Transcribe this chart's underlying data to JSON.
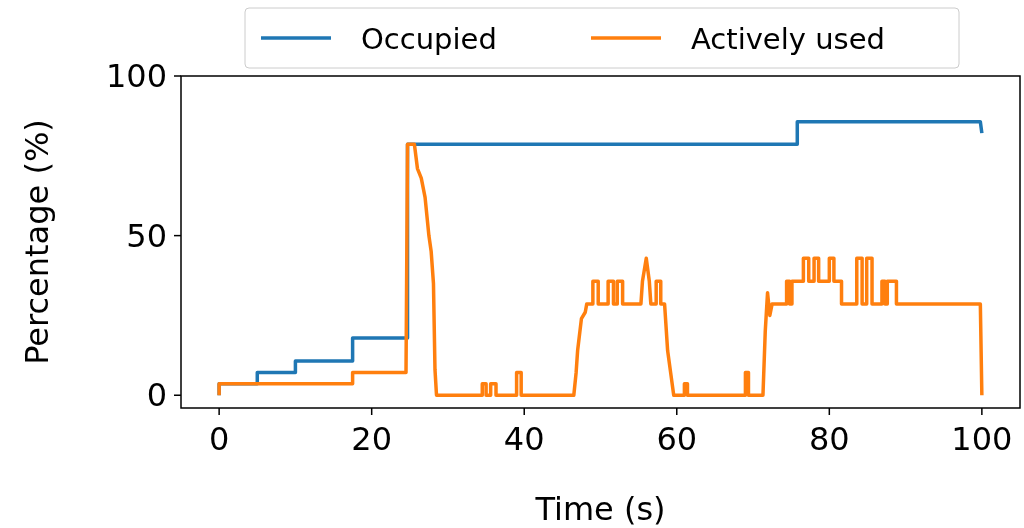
{
  "chart_data": {
    "type": "line",
    "xlabel": "Time (s)",
    "ylabel": "Percentage (%)",
    "xlim": [
      -5,
      105
    ],
    "ylim": [
      -4,
      100
    ],
    "xticks": [
      0,
      20,
      40,
      60,
      80,
      100
    ],
    "yticks": [
      0,
      50,
      100
    ],
    "legend": "top",
    "grid": false,
    "line_style": "solid",
    "marker": "none",
    "series": [
      {
        "name": "Occupied",
        "color": "#1f77b4",
        "x": [
          0,
          0,
          5,
          5,
          10,
          10,
          17.5,
          17.5,
          24.7,
          24.7,
          75.8,
          75.8,
          99.8,
          100
        ],
        "values": [
          0,
          3.6,
          3.6,
          7.1,
          7.1,
          10.7,
          10.7,
          17.9,
          17.9,
          78.6,
          78.6,
          85.7,
          85.7,
          82.1
        ]
      },
      {
        "name": "Actively used",
        "color": "#ff7f0e",
        "x": [
          0,
          0,
          17.5,
          17.5,
          24.5,
          24.7,
          25.6,
          26,
          26.5,
          27,
          27.5,
          27.8,
          28.1,
          28.3,
          28.5,
          34.5,
          34.5,
          35,
          35,
          35.6,
          35.6,
          36.3,
          36.3,
          39,
          39,
          39.6,
          39.6,
          46.5,
          46.8,
          47,
          47.5,
          48,
          48.2,
          49,
          49,
          49.7,
          49.7,
          51,
          51,
          51.7,
          51.7,
          52.2,
          52.2,
          52.9,
          52.9,
          55.3,
          55.5,
          56,
          56.4,
          56.6,
          57.3,
          57.3,
          57.9,
          57.9,
          58.4,
          58.8,
          59.2,
          59.6,
          61,
          61,
          61.4,
          61.4,
          69,
          69,
          69.4,
          69.4,
          71.3,
          71.6,
          71.9,
          72.2,
          72.5,
          74.4,
          74.4,
          74.8,
          74.8,
          75.1,
          75.1,
          76.6,
          76.6,
          77.3,
          77.3,
          78,
          78,
          78.6,
          78.6,
          80,
          80,
          80.6,
          80.6,
          81.6,
          81.6,
          83.6,
          83.6,
          84.3,
          84.3,
          84.9,
          84.9,
          85.6,
          85.6,
          86.9,
          86.9,
          87.3,
          87.3,
          87.6,
          87.6,
          88.8,
          88.8,
          99.8,
          100
        ],
        "values": [
          0,
          3.6,
          3.6,
          7.1,
          7.1,
          78.6,
          78.6,
          71,
          68,
          62,
          50,
          45,
          35,
          8,
          0,
          0,
          3.6,
          3.6,
          0,
          0,
          3.6,
          3.6,
          0,
          0,
          7.1,
          7.1,
          0,
          0,
          7,
          14,
          24,
          26,
          28.6,
          28.6,
          35.7,
          35.7,
          28.6,
          28.6,
          35.7,
          35.7,
          28.6,
          28.6,
          35.7,
          35.7,
          28.6,
          28.6,
          35.7,
          42.9,
          35.7,
          28.6,
          28.6,
          35.7,
          35.7,
          28.6,
          28.6,
          14,
          7,
          0,
          0,
          3.6,
          3.6,
          0,
          0,
          7.1,
          7.1,
          0,
          0,
          20,
          32.1,
          25,
          28.6,
          28.6,
          35.7,
          35.7,
          28.6,
          28.6,
          35.7,
          35.7,
          42.9,
          42.9,
          35.7,
          35.7,
          42.9,
          42.9,
          35.7,
          35.7,
          42.9,
          42.9,
          35.7,
          35.7,
          28.6,
          28.6,
          42.9,
          42.9,
          28.6,
          28.6,
          42.9,
          42.9,
          28.6,
          28.6,
          35.7,
          35.7,
          28.6,
          28.6,
          35.7,
          35.7,
          28.6,
          28.6,
          0
        ]
      }
    ]
  }
}
